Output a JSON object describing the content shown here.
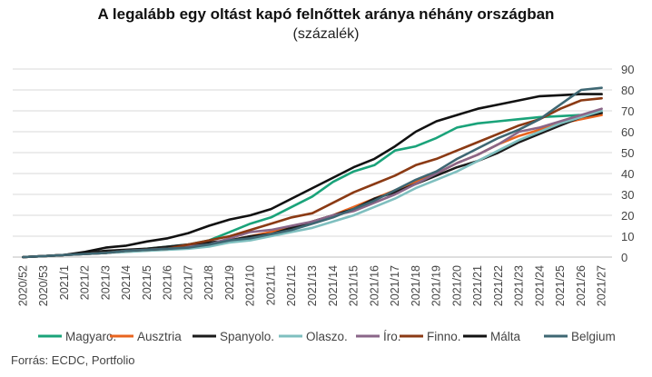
{
  "chart_data": {
    "type": "line",
    "title": "A legalább egy oltást kapó felnőttek aránya néhány országban",
    "subtitle": "(százalék)",
    "source": "Forrás: ECDC, Portfolio",
    "ylim": [
      0,
      90
    ],
    "yticks": [
      0,
      10,
      20,
      30,
      40,
      50,
      60,
      70,
      80,
      90
    ],
    "grid": true,
    "legend_position": "bottom",
    "categories": [
      "2020/52",
      "2020/53",
      "2021/1",
      "2021/2",
      "2021/3",
      "2021/4",
      "2021/5",
      "2021/6",
      "2021/7",
      "2021/8",
      "2021/9",
      "2021/10",
      "2021/11",
      "2021/12",
      "2021/13",
      "2021/14",
      "2021/15",
      "2021/16",
      "2021/17",
      "2021/18",
      "2021/19",
      "2021/20",
      "2021/21",
      "2021/22",
      "2021/23",
      "2021/24",
      "2021/25",
      "2021/26",
      "2021/27"
    ],
    "series": [
      {
        "name": "Magyaro.",
        "color": "#1aa37a",
        "values": [
          0,
          0.5,
          1,
          1.5,
          2,
          3,
          4,
          5,
          6,
          8,
          12,
          16,
          19,
          24,
          29,
          36,
          41,
          44,
          51,
          53,
          57,
          62,
          64,
          65,
          66,
          67,
          67.5,
          68,
          69
        ]
      },
      {
        "name": "Ausztria",
        "color": "#e8641f",
        "values": [
          0,
          0.5,
          1,
          2,
          2.5,
          3,
          3.5,
          4,
          5,
          6,
          8,
          10,
          12,
          14,
          17,
          20,
          24,
          28,
          32,
          36,
          40,
          45,
          49,
          54,
          58,
          61,
          64,
          66,
          68
        ]
      },
      {
        "name": "Spanyolo.",
        "color": "#1b1b1b",
        "values": [
          0,
          0.5,
          1,
          2,
          3,
          3.5,
          4,
          5,
          6,
          7,
          8,
          10,
          11,
          14,
          17,
          20,
          23,
          28,
          31,
          35,
          39,
          43,
          46,
          50,
          55,
          59,
          63,
          67,
          69
        ]
      },
      {
        "name": "Olaszo.",
        "color": "#7fbfbf",
        "values": [
          0,
          0.5,
          1,
          1.5,
          2,
          2.5,
          3,
          3.5,
          4,
          5,
          7,
          8,
          10,
          12,
          14,
          17,
          20,
          24,
          28,
          33,
          37,
          41,
          46,
          51,
          56,
          60,
          64,
          67,
          70
        ]
      },
      {
        "name": "Íro.",
        "color": "#8a6688",
        "values": [
          0,
          0.5,
          1,
          1.5,
          2,
          3,
          3.5,
          4,
          5,
          6,
          9,
          12,
          13,
          15,
          17,
          20,
          22,
          26,
          30,
          35,
          40,
          45,
          49,
          54,
          60,
          62,
          65,
          68,
          71
        ]
      },
      {
        "name": "Finno.",
        "color": "#8b3a14",
        "values": [
          0,
          0.5,
          1,
          1.5,
          2,
          3,
          3.5,
          4,
          6,
          8,
          10,
          13,
          16,
          19,
          21,
          26,
          31,
          35,
          39,
          44,
          47,
          51,
          55,
          59,
          63,
          66,
          71,
          75,
          76
        ]
      },
      {
        "name": "Málta",
        "color": "#111111",
        "values": [
          0,
          0.5,
          1,
          2.5,
          4.5,
          5.5,
          7.5,
          9,
          11.5,
          15,
          18,
          20,
          23,
          28,
          33,
          38,
          43,
          47,
          53,
          60,
          65,
          68,
          71,
          73,
          75,
          77,
          77.5,
          78,
          78
        ]
      },
      {
        "name": "Belgium",
        "color": "#3e6773",
        "values": [
          0,
          0.5,
          1,
          1.5,
          2,
          3,
          3.5,
          4,
          4.5,
          6,
          8,
          9,
          11,
          13,
          16,
          19,
          23,
          27,
          32,
          37,
          41,
          47,
          52,
          57,
          61,
          66,
          73,
          80,
          81
        ]
      }
    ]
  }
}
